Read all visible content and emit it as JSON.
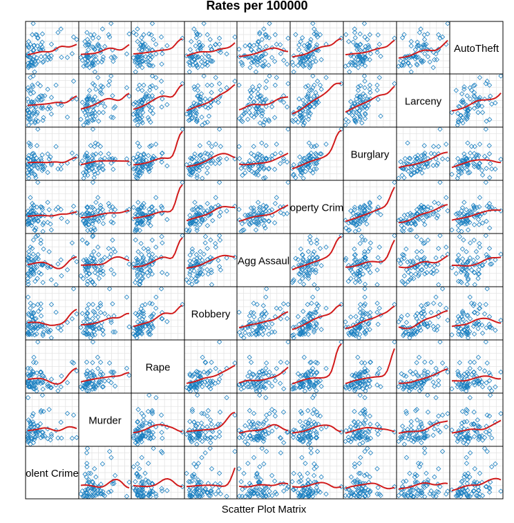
{
  "chart_data": {
    "type": "scatter",
    "title": "Rates per 100000",
    "subtitle": "Scatter Plot Matrix",
    "variables": [
      "Violent Crime",
      "Murder",
      "Rape",
      "Robbery",
      "Agg Assault",
      "Property Crime",
      "Burglary",
      "Larceny",
      "AutoTheft"
    ],
    "diagonal_labels": [
      "olent Crime",
      "Murder",
      "Rape",
      "Robbery",
      "Agg Assaul",
      "operty Crim",
      "Burglary",
      "Larceny",
      "AutoTheft"
    ],
    "n_points": 70,
    "grid": true,
    "smoother": true,
    "colors": {
      "points": "#1a7fc0",
      "smooth": "#d11a1a",
      "grid": "#e3e3e3",
      "frame": "#000000"
    }
  }
}
